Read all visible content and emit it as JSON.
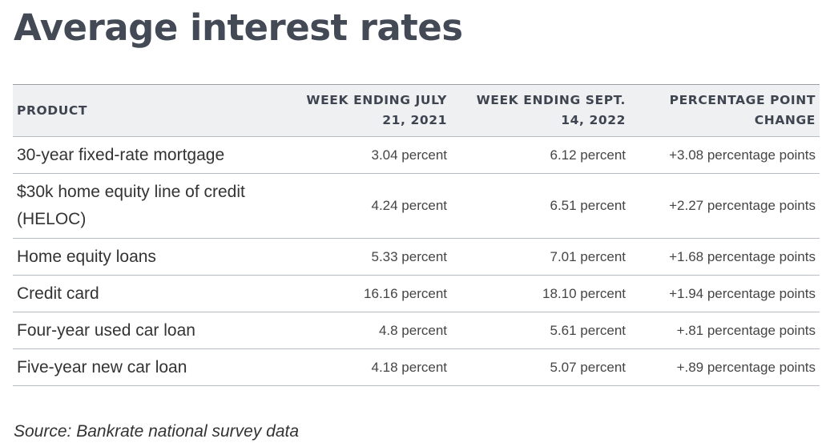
{
  "title": "Average interest rates",
  "table": {
    "headers": {
      "product": "PRODUCT",
      "week_2021": "WEEK ENDING JULY 21, 2021",
      "week_2022": "WEEK ENDING SEPT. 14, 2022",
      "change": "PERCENTAGE POINT CHANGE"
    },
    "rows": [
      {
        "product": "30-year fixed-rate mortgage",
        "week_2021": "3.04 percent",
        "week_2022": "6.12 percent",
        "change": "+3.08 percentage points"
      },
      {
        "product": "$30k home equity line of credit (HELOC)",
        "week_2021": "4.24 percent",
        "week_2022": "6.51 percent",
        "change": "+2.27 percentage points"
      },
      {
        "product": "Home equity loans",
        "week_2021": "5.33 percent",
        "week_2022": "7.01 percent",
        "change": "+1.68 percentage points"
      },
      {
        "product": "Credit card",
        "week_2021": "16.16 percent",
        "week_2022": "18.10 percent",
        "change": "+1.94 percentage points"
      },
      {
        "product": "Four-year used car loan",
        "week_2021": "4.8 percent",
        "week_2022": "5.61 percent",
        "change": "+.81 percentage points"
      },
      {
        "product": "Five-year new car loan",
        "week_2021": "4.18 percent",
        "week_2022": "5.07 percent",
        "change": "+.89 percentage points"
      }
    ]
  },
  "source": "Source: Bankrate national survey data"
}
